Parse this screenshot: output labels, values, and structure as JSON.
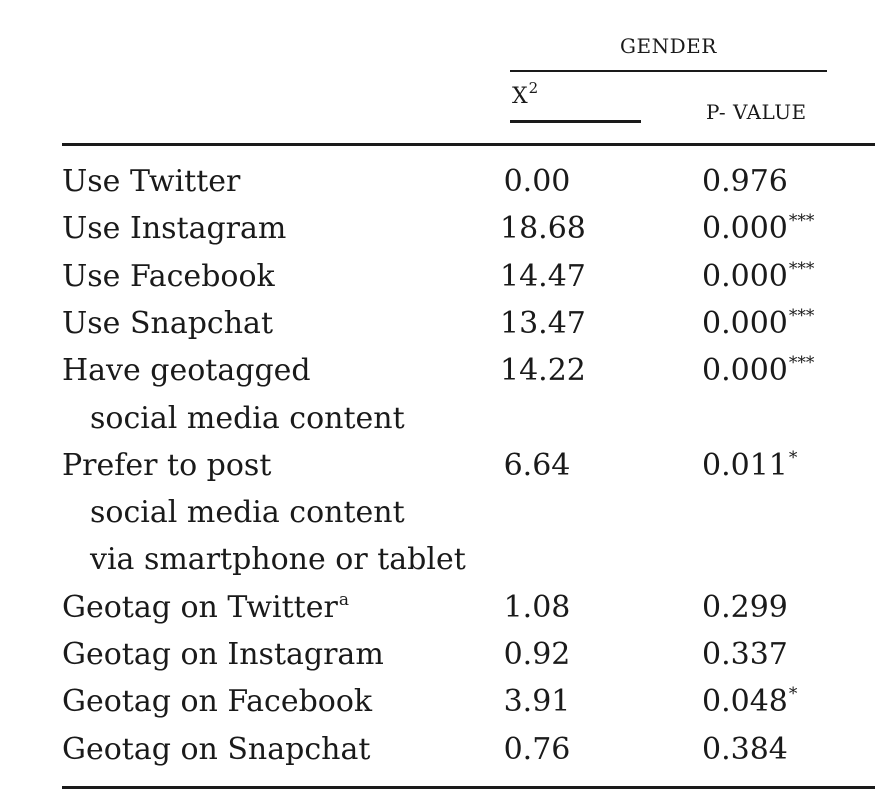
{
  "header": {
    "group": "GENDER",
    "col_x2": "X",
    "col_x2_sup": "2",
    "col_p": "P- VALUE"
  },
  "rows": [
    {
      "label": "Use Twitter",
      "x2": "0.00",
      "p": "0.976",
      "sig": ""
    },
    {
      "label": "Use Instagram",
      "x2": "18.68",
      "p": "0.000",
      "sig": "***"
    },
    {
      "label": "Use Facebook",
      "x2": "14.47",
      "p": "0.000",
      "sig": "***"
    },
    {
      "label": "Use Snapchat",
      "x2": "13.47",
      "p": "0.000",
      "sig": "***"
    },
    {
      "label": "Have geotagged",
      "label_cont": [
        "social media content"
      ],
      "x2": "14.22",
      "p": "0.000",
      "sig": "***"
    },
    {
      "label": "Prefer to post",
      "label_cont": [
        "social media content",
        "via smartphone or tablet"
      ],
      "x2": "6.64",
      "p": "0.011",
      "sig": "*"
    },
    {
      "label": "Geotag on Twitter",
      "label_sup": "a",
      "x2": "1.08",
      "p": "0.299",
      "sig": ""
    },
    {
      "label": "Geotag on Instagram",
      "x2": "0.92",
      "p": "0.337",
      "sig": ""
    },
    {
      "label": "Geotag on Facebook",
      "x2": "3.91",
      "p": "0.048",
      "sig": "*"
    },
    {
      "label": "Geotag on Snapchat",
      "x2": "0.76",
      "p": "0.384",
      "sig": ""
    }
  ]
}
